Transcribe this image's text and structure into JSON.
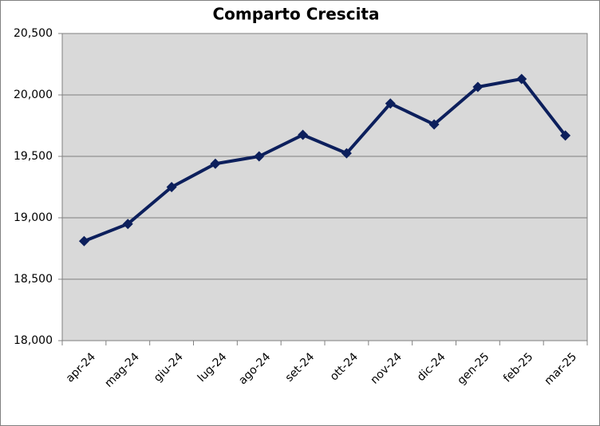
{
  "chart_data": {
    "type": "line",
    "title": "Comparto Crescita",
    "categories": [
      "apr-24",
      "mag-24",
      "giu-24",
      "lug-24",
      "ago-24",
      "set-24",
      "ott-24",
      "nov-24",
      "dic-24",
      "gen-25",
      "feb-25",
      "mar-25"
    ],
    "values": [
      18810,
      18950,
      19250,
      19440,
      19500,
      19675,
      19525,
      19930,
      19760,
      20065,
      20130,
      19670
    ],
    "color": "#0c1f5c",
    "ylim": [
      18000,
      20500
    ],
    "yticks": [
      {
        "value": 18000,
        "label": "18,000"
      },
      {
        "value": 18500,
        "label": "18,500"
      },
      {
        "value": 19000,
        "label": "19,000"
      },
      {
        "value": 19500,
        "label": "19,500"
      },
      {
        "value": 20000,
        "label": "20,000"
      },
      {
        "value": 20500,
        "label": "20,500"
      }
    ],
    "grid": true
  }
}
